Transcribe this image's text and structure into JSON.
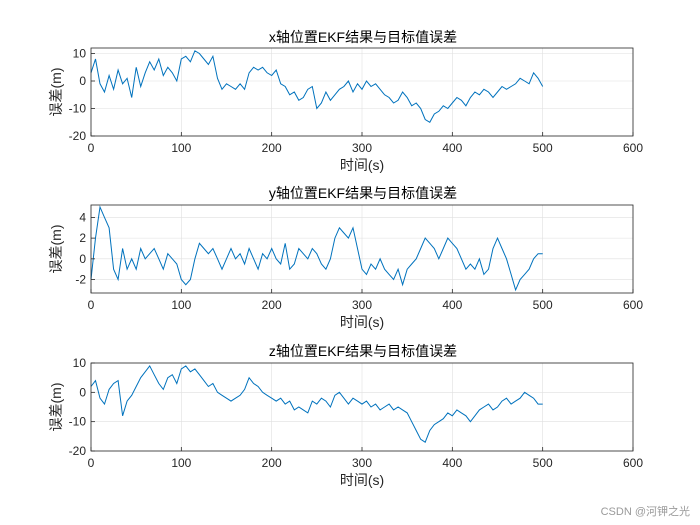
{
  "chart_data": [
    {
      "type": "line",
      "title": "x轴位置EKF结果与目标值误差",
      "xlabel": "时间(s)",
      "ylabel": "误差(m)",
      "xlim": [
        0,
        600
      ],
      "ylim": [
        -20,
        12
      ],
      "xticks": [
        0,
        100,
        200,
        300,
        400,
        500,
        600
      ],
      "yticks": [
        -20,
        -10,
        0,
        10
      ],
      "grid": true,
      "color": "#0072BD",
      "x": [
        0,
        5,
        10,
        15,
        20,
        25,
        30,
        35,
        40,
        45,
        50,
        55,
        60,
        65,
        70,
        75,
        80,
        85,
        90,
        95,
        100,
        105,
        110,
        115,
        120,
        125,
        130,
        135,
        140,
        145,
        150,
        155,
        160,
        165,
        170,
        175,
        180,
        185,
        190,
        195,
        200,
        205,
        210,
        215,
        220,
        225,
        230,
        235,
        240,
        245,
        250,
        255,
        260,
        265,
        270,
        275,
        280,
        285,
        290,
        295,
        300,
        305,
        310,
        315,
        320,
        325,
        330,
        335,
        340,
        345,
        350,
        355,
        360,
        365,
        370,
        375,
        380,
        385,
        390,
        395,
        400,
        405,
        410,
        415,
        420,
        425,
        430,
        435,
        440,
        445,
        450,
        455,
        460,
        465,
        470,
        475,
        480,
        485,
        490,
        495,
        500
      ],
      "y": [
        3,
        8,
        -1,
        -4,
        2,
        -3,
        4,
        -1,
        1,
        -6,
        5,
        -2,
        3,
        7,
        4,
        8,
        2,
        5,
        3,
        0,
        8,
        9,
        7,
        11,
        10,
        8,
        6,
        9,
        1,
        -3,
        -1,
        -2,
        -3,
        -1,
        -3,
        3,
        5,
        4,
        5,
        3,
        2,
        4,
        -1,
        -2,
        -5,
        -4,
        -7,
        -6,
        -3,
        -2,
        -10,
        -8,
        -4,
        -7,
        -5,
        -3,
        -2,
        0,
        -4,
        -1,
        -3,
        0,
        -2,
        -1,
        -3,
        -5,
        -6,
        -8,
        -7,
        -4,
        -6,
        -9,
        -8,
        -10,
        -14,
        -15,
        -12,
        -11,
        -9,
        -10,
        -8,
        -6,
        -7,
        -9,
        -6,
        -4,
        -5,
        -3,
        -4,
        -6,
        -4,
        -2,
        -3,
        -2,
        -1,
        1,
        0,
        -1,
        3,
        1,
        -2
      ]
    },
    {
      "type": "line",
      "title": "y轴位置EKF结果与目标值误差",
      "xlabel": "时间(s)",
      "ylabel": "误差(m)",
      "xlim": [
        0,
        600
      ],
      "ylim": [
        -3.3,
        5.2
      ],
      "xticks": [
        0,
        100,
        200,
        300,
        400,
        500,
        600
      ],
      "yticks": [
        -2,
        0,
        2,
        4
      ],
      "grid": true,
      "color": "#0072BD",
      "x": [
        0,
        5,
        10,
        15,
        20,
        25,
        30,
        35,
        40,
        45,
        50,
        55,
        60,
        65,
        70,
        75,
        80,
        85,
        90,
        95,
        100,
        105,
        110,
        115,
        120,
        125,
        130,
        135,
        140,
        145,
        150,
        155,
        160,
        165,
        170,
        175,
        180,
        185,
        190,
        195,
        200,
        205,
        210,
        215,
        220,
        225,
        230,
        235,
        240,
        245,
        250,
        255,
        260,
        265,
        270,
        275,
        280,
        285,
        290,
        295,
        300,
        305,
        310,
        315,
        320,
        325,
        330,
        335,
        340,
        345,
        350,
        355,
        360,
        365,
        370,
        375,
        380,
        385,
        390,
        395,
        400,
        405,
        410,
        415,
        420,
        425,
        430,
        435,
        440,
        445,
        450,
        455,
        460,
        465,
        470,
        475,
        480,
        485,
        490,
        495,
        500
      ],
      "y": [
        -2,
        2,
        5,
        4,
        3,
        -1,
        -2,
        1,
        -1,
        0,
        -1,
        1,
        0,
        0.5,
        1,
        0,
        -1,
        0.5,
        0,
        -0.5,
        -2,
        -2.5,
        -2,
        0,
        1.5,
        1,
        0.5,
        1,
        0,
        -1,
        0,
        1,
        0,
        0.5,
        -0.5,
        1,
        0,
        -1,
        0.5,
        0,
        1,
        0,
        -0.5,
        1.5,
        -1,
        -0.5,
        1,
        0.5,
        0,
        1,
        0.5,
        -0.5,
        -1,
        0,
        2,
        3,
        2.5,
        2,
        3,
        1,
        -1,
        -1.5,
        -0.5,
        -1,
        0,
        -1,
        -1.5,
        -2,
        -1,
        -2.5,
        -1,
        -0.5,
        0,
        1,
        2,
        1.5,
        1,
        0,
        1,
        2,
        1.5,
        1,
        0,
        -1,
        -0.5,
        -1,
        0,
        -1.5,
        -1,
        1,
        2,
        1,
        0,
        -1.5,
        -3,
        -2,
        -1.5,
        -1,
        0,
        0.5,
        0.5
      ]
    },
    {
      "type": "line",
      "title": "z轴位置EKF结果与目标值误差",
      "xlabel": "时间(s)",
      "ylabel": "误差(m)",
      "xlim": [
        0,
        600
      ],
      "ylim": [
        -20,
        10
      ],
      "xticks": [
        0,
        100,
        200,
        300,
        400,
        500,
        600
      ],
      "yticks": [
        -20,
        -10,
        0,
        10
      ],
      "grid": true,
      "color": "#0072BD",
      "x": [
        0,
        5,
        10,
        15,
        20,
        25,
        30,
        35,
        40,
        45,
        50,
        55,
        60,
        65,
        70,
        75,
        80,
        85,
        90,
        95,
        100,
        105,
        110,
        115,
        120,
        125,
        130,
        135,
        140,
        145,
        150,
        155,
        160,
        165,
        170,
        175,
        180,
        185,
        190,
        195,
        200,
        205,
        210,
        215,
        220,
        225,
        230,
        235,
        240,
        245,
        250,
        255,
        260,
        265,
        270,
        275,
        280,
        285,
        290,
        295,
        300,
        305,
        310,
        315,
        320,
        325,
        330,
        335,
        340,
        345,
        350,
        355,
        360,
        365,
        370,
        375,
        380,
        385,
        390,
        395,
        400,
        405,
        410,
        415,
        420,
        425,
        430,
        435,
        440,
        445,
        450,
        455,
        460,
        465,
        470,
        475,
        480,
        485,
        490,
        495,
        500
      ],
      "y": [
        2,
        4,
        -2,
        -4,
        1,
        3,
        4,
        -8,
        -3,
        -1,
        2,
        5,
        7,
        9,
        6,
        3,
        1,
        5,
        6,
        3,
        8,
        9,
        7,
        8,
        6,
        4,
        2,
        3,
        0,
        -1,
        -2,
        -3,
        -2,
        -1,
        1,
        5,
        3,
        2,
        0,
        -1,
        -2,
        -3,
        -2,
        -4,
        -3,
        -6,
        -5,
        -6,
        -7,
        -3,
        -4,
        -2,
        -3,
        -5,
        -1,
        0,
        -2,
        -4,
        -2,
        -3,
        -4,
        -3,
        -5,
        -4,
        -6,
        -5,
        -4,
        -6,
        -5,
        -6,
        -7,
        -10,
        -13,
        -16,
        -17,
        -13,
        -11,
        -10,
        -9,
        -7,
        -8,
        -6,
        -7,
        -8,
        -10,
        -8,
        -6,
        -5,
        -4,
        -6,
        -5,
        -3,
        -2,
        -4,
        -3,
        -2,
        0,
        -1,
        -2,
        -4,
        -4
      ]
    }
  ],
  "watermark": "CSDN @河钾之光"
}
